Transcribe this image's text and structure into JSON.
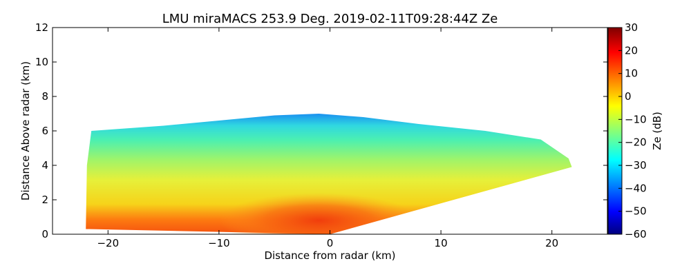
{
  "chart_data": {
    "type": "heatmap",
    "title": "LMU miraMACS 253.9 Deg. 2019-02-11T09:28:44Z  Ze",
    "xlabel": "Distance from radar (km)",
    "ylabel": "Distance Above radar  (km)",
    "xlim": [
      -25,
      25
    ],
    "ylim": [
      0,
      12
    ],
    "x_ticks": [
      -20,
      -10,
      0,
      10,
      20
    ],
    "x_tick_labels": [
      "−20",
      "−10",
      "0",
      "10",
      "20"
    ],
    "y_ticks": [
      0,
      2,
      4,
      6,
      8,
      10,
      12
    ],
    "y_tick_labels": [
      "0",
      "2",
      "4",
      "6",
      "8",
      "10",
      "12"
    ],
    "grid": false,
    "colormap": "jet",
    "colorbar": {
      "label": "Ze (dB)",
      "range": [
        -60,
        30
      ],
      "ticks": [
        30,
        20,
        10,
        0,
        -10,
        -20,
        -30,
        -40,
        -50,
        -60
      ],
      "tick_labels": [
        "30",
        "20",
        "10",
        "0",
        "−10",
        "−20",
        "−30",
        "−40",
        "−50",
        "−60"
      ]
    },
    "echo_region": {
      "outline_km": [
        [
          -22,
          0.3
        ],
        [
          -21.9,
          4.0
        ],
        [
          -21.5,
          6.0
        ],
        [
          -15,
          6.3
        ],
        [
          -10,
          6.6
        ],
        [
          -5,
          6.9
        ],
        [
          -1,
          7.0
        ],
        [
          3,
          6.8
        ],
        [
          8,
          6.4
        ],
        [
          14,
          6.0
        ],
        [
          19,
          5.5
        ],
        [
          21.5,
          4.4
        ],
        [
          21.8,
          3.9
        ],
        [
          0,
          0.0
        ],
        [
          -22,
          0.3
        ]
      ],
      "echo_top_km": 7.0,
      "reflectivity_layers": [
        {
          "height_km": 0.5,
          "ze_db": 17
        },
        {
          "height_km": 1.5,
          "ze_db": 12
        },
        {
          "height_km": 3.0,
          "ze_db": -5
        },
        {
          "height_km": 4.5,
          "ze_db": -10
        },
        {
          "height_km": 5.5,
          "ze_db": -18
        },
        {
          "height_km": 6.8,
          "ze_db": -32
        }
      ]
    }
  }
}
